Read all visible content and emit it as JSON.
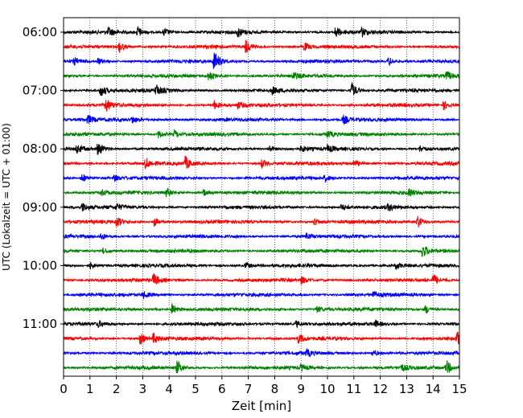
{
  "chart_data": {
    "type": "line",
    "title": "",
    "xlabel": "Zeit  [min]",
    "ylabel": "UTC (Lokalzeit = UTC + 01:00)",
    "xlim": [
      0,
      15
    ],
    "x_ticks": [
      "0",
      "1",
      "2",
      "3",
      "4",
      "5",
      "6",
      "7",
      "8",
      "9",
      "10",
      "11",
      "12",
      "13",
      "14",
      "15"
    ],
    "y_ticks": [
      {
        "label": "06:00",
        "row": 0
      },
      {
        "label": "07:00",
        "row": 4
      },
      {
        "label": "08:00",
        "row": 8
      },
      {
        "label": "09:00",
        "row": 12
      },
      {
        "label": "10:00",
        "row": 16
      },
      {
        "label": "11:00",
        "row": 20
      }
    ],
    "start_time": "06:00",
    "row_minutes": 15,
    "row_count": 24,
    "grid": {
      "x": true,
      "y": false,
      "style": "dotted"
    },
    "trace_colors": [
      "#000000",
      "#ff0000",
      "#0000ff",
      "#008000"
    ],
    "traces": [
      {
        "row": 0,
        "color": "#000000",
        "events": [
          [
            1.7,
            0.4
          ],
          [
            2.8,
            0.5
          ],
          [
            3.8,
            0.4
          ],
          [
            6.6,
            0.4
          ],
          [
            10.3,
            0.5
          ],
          [
            11.3,
            0.4
          ]
        ]
      },
      {
        "row": 1,
        "color": "#ff0000",
        "events": [
          [
            2.1,
            0.5
          ],
          [
            6.9,
            0.6
          ],
          [
            9.1,
            0.4
          ]
        ]
      },
      {
        "row": 2,
        "color": "#0000ff",
        "events": [
          [
            0.4,
            0.3
          ],
          [
            1.3,
            0.3
          ],
          [
            5.7,
            1.0
          ],
          [
            12.3,
            0.4
          ]
        ]
      },
      {
        "row": 3,
        "color": "#008000",
        "events": [
          [
            5.5,
            0.5
          ],
          [
            8.7,
            0.3
          ],
          [
            14.5,
            0.4
          ]
        ]
      },
      {
        "row": 4,
        "color": "#000000",
        "events": [
          [
            1.4,
            0.6
          ],
          [
            3.5,
            0.5
          ],
          [
            7.9,
            0.3
          ],
          [
            10.9,
            0.8
          ]
        ]
      },
      {
        "row": 5,
        "color": "#ff0000",
        "events": [
          [
            1.6,
            0.6
          ],
          [
            5.7,
            0.4
          ],
          [
            6.6,
            0.3
          ],
          [
            14.4,
            0.4
          ]
        ]
      },
      {
        "row": 6,
        "color": "#0000ff",
        "events": [
          [
            0.9,
            0.4
          ],
          [
            2.6,
            0.3
          ],
          [
            10.6,
            0.4
          ]
        ]
      },
      {
        "row": 7,
        "color": "#008000",
        "events": [
          [
            3.6,
            0.4
          ],
          [
            4.2,
            0.3
          ],
          [
            10.0,
            0.3
          ]
        ]
      },
      {
        "row": 8,
        "color": "#000000",
        "events": [
          [
            0.5,
            0.4
          ],
          [
            1.3,
            0.7
          ],
          [
            7.8,
            0.3
          ],
          [
            9.0,
            0.3
          ],
          [
            10.0,
            0.3
          ],
          [
            13.5,
            0.3
          ]
        ]
      },
      {
        "row": 9,
        "color": "#ff0000",
        "events": [
          [
            3.1,
            0.5
          ],
          [
            4.6,
            0.6
          ],
          [
            7.5,
            0.4
          ],
          [
            11.0,
            0.3
          ]
        ]
      },
      {
        "row": 10,
        "color": "#0000ff",
        "events": [
          [
            0.7,
            0.4
          ],
          [
            1.9,
            0.3
          ],
          [
            9.9,
            0.3
          ]
        ]
      },
      {
        "row": 11,
        "color": "#008000",
        "events": [
          [
            1.4,
            0.3
          ],
          [
            3.9,
            0.4
          ],
          [
            5.3,
            0.3
          ],
          [
            13.1,
            0.3
          ]
        ]
      },
      {
        "row": 12,
        "color": "#000000",
        "events": [
          [
            0.7,
            0.4
          ],
          [
            2.0,
            0.3
          ],
          [
            10.5,
            0.3
          ],
          [
            12.3,
            0.3
          ]
        ]
      },
      {
        "row": 13,
        "color": "#ff0000",
        "events": [
          [
            2.0,
            0.5
          ],
          [
            3.4,
            0.5
          ],
          [
            9.5,
            0.3
          ],
          [
            13.4,
            0.6
          ]
        ]
      },
      {
        "row": 14,
        "color": "#0000ff",
        "events": [
          [
            1.4,
            0.3
          ],
          [
            9.2,
            0.3
          ]
        ]
      },
      {
        "row": 15,
        "color": "#008000",
        "events": [
          [
            1.5,
            0.3
          ],
          [
            13.6,
            0.6
          ]
        ]
      },
      {
        "row": 16,
        "color": "#000000",
        "events": [
          [
            1.0,
            0.3
          ],
          [
            6.9,
            0.3
          ],
          [
            12.6,
            0.3
          ]
        ]
      },
      {
        "row": 17,
        "color": "#ff0000",
        "events": [
          [
            3.4,
            0.6
          ],
          [
            9.0,
            0.3
          ],
          [
            14.0,
            0.5
          ]
        ]
      },
      {
        "row": 18,
        "color": "#0000ff",
        "events": [
          [
            3.0,
            0.3
          ],
          [
            11.7,
            0.3
          ]
        ]
      },
      {
        "row": 19,
        "color": "#008000",
        "events": [
          [
            4.1,
            0.5
          ],
          [
            9.6,
            0.3
          ],
          [
            13.7,
            0.4
          ]
        ]
      },
      {
        "row": 20,
        "color": "#000000",
        "events": [
          [
            1.3,
            0.3
          ],
          [
            8.8,
            0.3
          ],
          [
            11.8,
            0.3
          ]
        ]
      },
      {
        "row": 21,
        "color": "#ff0000",
        "events": [
          [
            2.9,
            0.5
          ],
          [
            3.4,
            0.5
          ],
          [
            8.9,
            0.4
          ],
          [
            14.9,
            0.6
          ]
        ]
      },
      {
        "row": 22,
        "color": "#0000ff",
        "events": [
          [
            9.2,
            0.3
          ],
          [
            11.7,
            0.3
          ]
        ]
      },
      {
        "row": 23,
        "color": "#008000",
        "events": [
          [
            4.3,
            0.6
          ],
          [
            9.0,
            0.3
          ],
          [
            12.8,
            0.3
          ],
          [
            14.5,
            0.6
          ]
        ]
      }
    ]
  }
}
